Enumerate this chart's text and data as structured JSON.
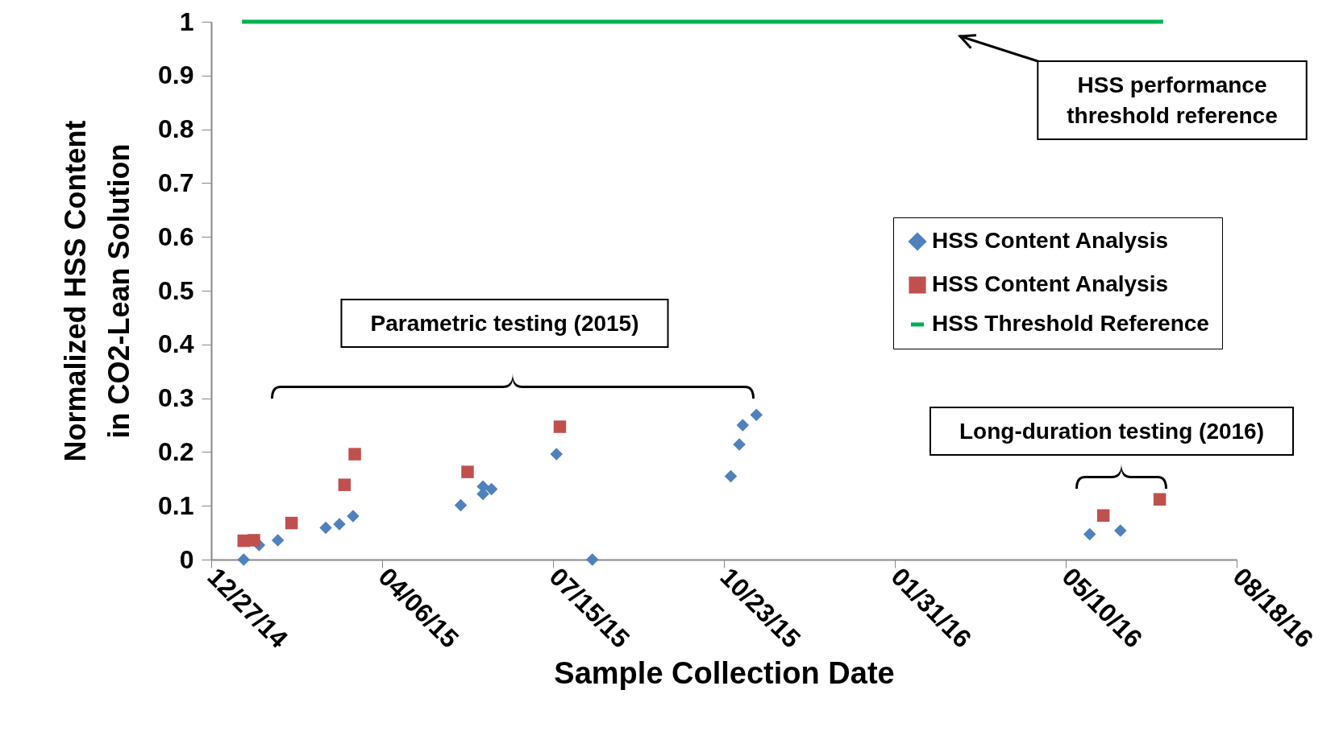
{
  "chart_data": {
    "type": "scatter",
    "xlabel": "Sample Collection Date",
    "ylabel": "Normalized HSS Content in CO2-Lean Solution",
    "xlim": [
      "2014-12-27",
      "2016-08-18"
    ],
    "xticks": [
      {
        "value": "2014-12-27",
        "label": "12/27/14"
      },
      {
        "value": "2015-04-06",
        "label": "04/06/15"
      },
      {
        "value": "2015-07-15",
        "label": "07/15/15"
      },
      {
        "value": "2015-10-23",
        "label": "10/23/15"
      },
      {
        "value": "2016-01-31",
        "label": "01/31/16"
      },
      {
        "value": "2016-05-10",
        "label": "05/10/16"
      },
      {
        "value": "2016-08-18",
        "label": "08/18/16"
      }
    ],
    "ylim": [
      0,
      1
    ],
    "yticks": [
      0,
      0.1,
      0.2,
      0.3,
      0.4,
      0.5,
      0.6,
      0.7,
      0.8,
      0.9,
      1
    ],
    "grid": false,
    "legend": "right",
    "series": [
      {
        "name": "HSS Content Analysis",
        "color": "#4f81bd",
        "marker": "diamond",
        "x": [
          "2015-01-15",
          "2015-01-24",
          "2015-02-04",
          "2015-03-04",
          "2015-03-12",
          "2015-03-20",
          "2015-05-22",
          "2015-06-04",
          "2015-06-04",
          "2015-06-09",
          "2015-07-17",
          "2015-08-07",
          "2015-10-27",
          "2015-11-01",
          "2015-11-03",
          "2015-11-11",
          "2016-05-24",
          "2016-06-11"
        ],
        "values": [
          0,
          0.027,
          0.036,
          0.059,
          0.066,
          0.081,
          0.101,
          0.136,
          0.122,
          0.131,
          0.196,
          0,
          0.155,
          0.214,
          0.25,
          0.269,
          0.047,
          0.054
        ]
      },
      {
        "name": "HSS Content Analysis",
        "color": "#c0504d",
        "marker": "square",
        "x": [
          "2015-01-15",
          "2015-01-21",
          "2015-02-12",
          "2015-03-15",
          "2015-03-21",
          "2015-05-26",
          "2015-07-19",
          "2016-06-01",
          "2016-07-04"
        ],
        "values": [
          0.035,
          0.036,
          0.068,
          0.139,
          0.196,
          0.163,
          0.247,
          0.082,
          0.112
        ]
      },
      {
        "name": "HSS Threshold Reference",
        "color": "#00b050",
        "type": "line",
        "x": [
          "2015-01-14",
          "2016-07-06"
        ],
        "values": [
          1,
          1
        ]
      }
    ],
    "annotations": [
      "HSS performance threshold reference",
      "Parametric testing (2015)",
      "Long-duration testing (2016)"
    ]
  }
}
